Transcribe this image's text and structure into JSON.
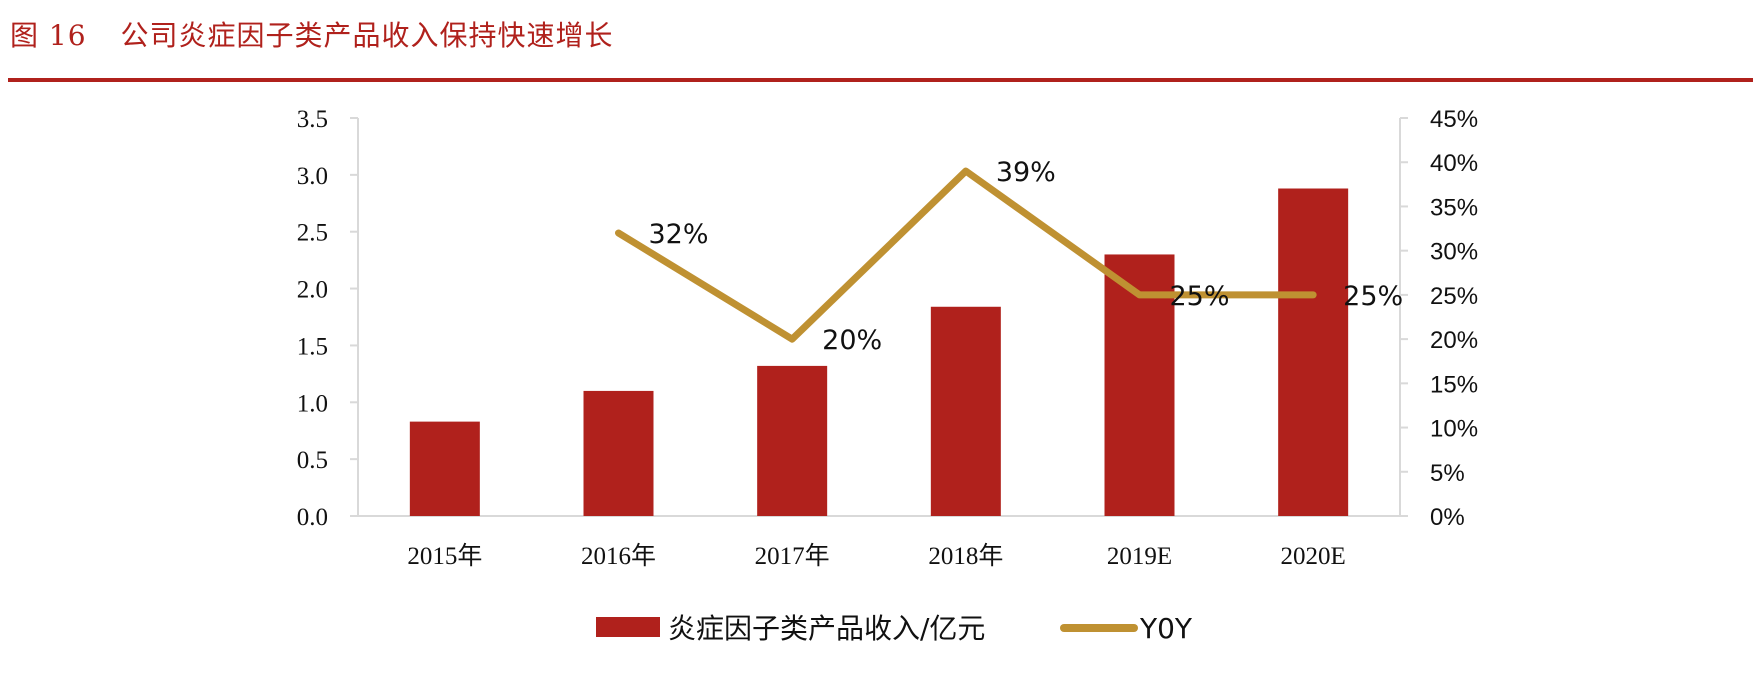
{
  "figure": {
    "number": "图 16",
    "title": "公司炎症因子类产品收入保持快速增长"
  },
  "colors": {
    "accent": "#b0211c",
    "bar": "#b0211c",
    "line": "#bf9132",
    "axis": "#d9d9d9"
  },
  "chart_data": {
    "type": "bar",
    "categories": [
      "2015年",
      "2016年",
      "2017年",
      "2018年",
      "2019E",
      "2020E"
    ],
    "series": [
      {
        "name": "炎症因子类产品收入/亿元",
        "type": "bar",
        "axis": "left",
        "values": [
          0.83,
          1.1,
          1.32,
          1.84,
          2.3,
          2.88
        ]
      },
      {
        "name": "Y0Y",
        "type": "line",
        "axis": "right",
        "values": [
          null,
          0.32,
          0.2,
          0.39,
          0.25,
          0.25
        ],
        "labels": [
          "",
          "32%",
          "20%",
          "39%",
          "25%",
          "25%"
        ]
      }
    ],
    "y_left": {
      "min": 0,
      "max": 3.5,
      "ticks": [
        "0.0",
        "0.5",
        "1.0",
        "1.5",
        "2.0",
        "2.5",
        "3.0",
        "3.5"
      ]
    },
    "y_right": {
      "min": 0,
      "max": 0.45,
      "ticks": [
        "0%",
        "5%",
        "10%",
        "15%",
        "20%",
        "25%",
        "30%",
        "35%",
        "40%",
        "45%"
      ]
    },
    "grid": false,
    "legend": "bottom"
  }
}
